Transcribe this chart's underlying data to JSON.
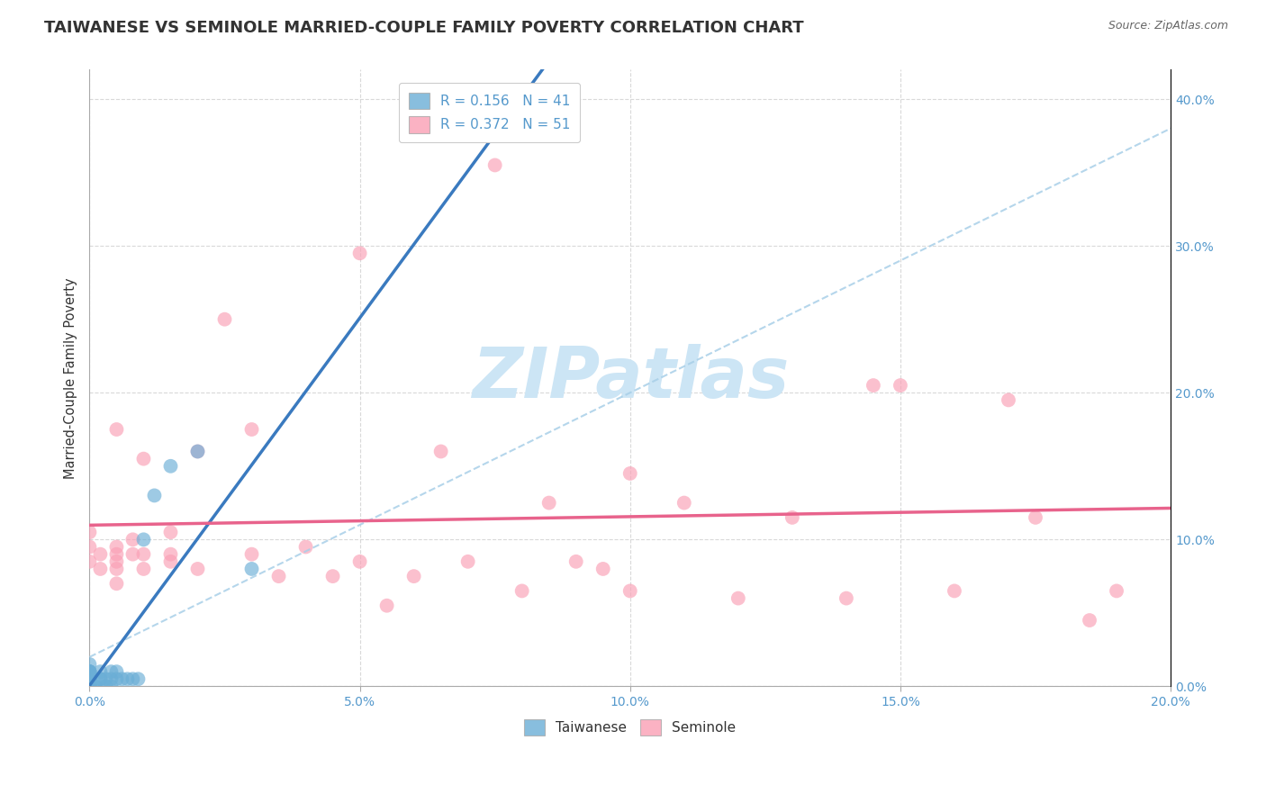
{
  "title": "TAIWANESE VS SEMINOLE MARRIED-COUPLE FAMILY POVERTY CORRELATION CHART",
  "source": "Source: ZipAtlas.com",
  "xlim": [
    0.0,
    0.2
  ],
  "ylim": [
    0.0,
    0.42
  ],
  "ylabel": "Married-Couple Family Poverty",
  "taiwanese_R": 0.156,
  "taiwanese_N": 41,
  "seminole_R": 0.372,
  "seminole_N": 51,
  "taiwanese_color": "#6baed6",
  "seminole_color": "#fa9fb5",
  "tw_line_color": "#3a7abf",
  "sem_line_color": "#e8638c",
  "dash_line_color": "#a8cfe8",
  "taiwanese_x": [
    0.0,
    0.0,
    0.0,
    0.0,
    0.0,
    0.0,
    0.0,
    0.0,
    0.0,
    0.0,
    0.0,
    0.0,
    0.0,
    0.0,
    0.0,
    0.0,
    0.0,
    0.0,
    0.0,
    0.0,
    0.001,
    0.001,
    0.002,
    0.002,
    0.002,
    0.003,
    0.003,
    0.004,
    0.004,
    0.004,
    0.005,
    0.005,
    0.006,
    0.007,
    0.008,
    0.009,
    0.01,
    0.012,
    0.015,
    0.02,
    0.03
  ],
  "taiwanese_y": [
    0.0,
    0.0,
    0.0,
    0.0,
    0.0,
    0.0,
    0.0,
    0.0,
    0.005,
    0.005,
    0.005,
    0.005,
    0.005,
    0.005,
    0.01,
    0.01,
    0.01,
    0.01,
    0.01,
    0.015,
    0.0,
    0.0,
    0.005,
    0.005,
    0.01,
    0.0,
    0.005,
    0.0,
    0.005,
    0.01,
    0.005,
    0.01,
    0.005,
    0.005,
    0.005,
    0.005,
    0.1,
    0.13,
    0.15,
    0.16,
    0.08
  ],
  "seminole_x": [
    0.0,
    0.0,
    0.0,
    0.002,
    0.002,
    0.005,
    0.005,
    0.005,
    0.005,
    0.005,
    0.005,
    0.008,
    0.008,
    0.01,
    0.01,
    0.01,
    0.015,
    0.015,
    0.015,
    0.02,
    0.02,
    0.025,
    0.03,
    0.03,
    0.035,
    0.04,
    0.045,
    0.05,
    0.05,
    0.055,
    0.06,
    0.065,
    0.07,
    0.075,
    0.08,
    0.085,
    0.09,
    0.095,
    0.1,
    0.1,
    0.11,
    0.12,
    0.13,
    0.14,
    0.145,
    0.15,
    0.16,
    0.17,
    0.175,
    0.185,
    0.19
  ],
  "seminole_y": [
    0.085,
    0.095,
    0.105,
    0.08,
    0.09,
    0.07,
    0.08,
    0.085,
    0.09,
    0.095,
    0.175,
    0.09,
    0.1,
    0.08,
    0.09,
    0.155,
    0.085,
    0.09,
    0.105,
    0.08,
    0.16,
    0.25,
    0.09,
    0.175,
    0.075,
    0.095,
    0.075,
    0.085,
    0.295,
    0.055,
    0.075,
    0.16,
    0.085,
    0.355,
    0.065,
    0.125,
    0.085,
    0.08,
    0.145,
    0.065,
    0.125,
    0.06,
    0.115,
    0.06,
    0.205,
    0.205,
    0.065,
    0.195,
    0.115,
    0.045,
    0.065
  ],
  "background_color": "#ffffff",
  "grid_color": "#d0d0d0",
  "watermark_text": "ZIPatlas",
  "watermark_color": "#cce5f5",
  "title_fontsize": 13,
  "axis_label_fontsize": 10.5,
  "tick_fontsize": 10,
  "legend_fontsize": 11,
  "tick_color": "#5599cc"
}
